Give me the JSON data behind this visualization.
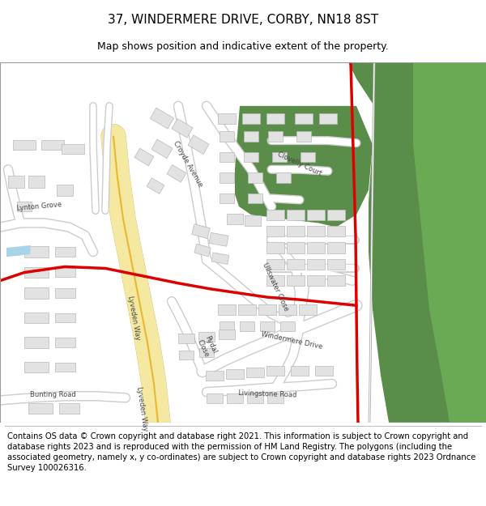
{
  "title_line1": "37, WINDERMERE DRIVE, CORBY, NN18 8ST",
  "title_line2": "Map shows position and indicative extent of the property.",
  "footer_text": "Contains OS data © Crown copyright and database right 2021. This information is subject to Crown copyright and database rights 2023 and is reproduced with the permission of HM Land Registry. The polygons (including the associated geometry, namely x, y co-ordinates) are subject to Crown copyright and database rights 2023 Ordnance Survey 100026316.",
  "bg_color": "#ffffff",
  "map_bg": "#ffffff",
  "green_dark": "#5a8c4a",
  "green_right": "#6aaa55",
  "road_white": "#ffffff",
  "road_outline": "#cccccc",
  "building_fill": "#e2e2e2",
  "building_edge": "#b8b8b8",
  "yellow_fill": "#fdf0b0",
  "yellow_line": "#e8b830",
  "red_line": "#dd0000",
  "water_blue": "#a8d4e8",
  "title_fontsize": 11,
  "subtitle_fontsize": 9,
  "footer_fontsize": 7.2,
  "label_color": "#444444",
  "label_fontsize": 6.0
}
